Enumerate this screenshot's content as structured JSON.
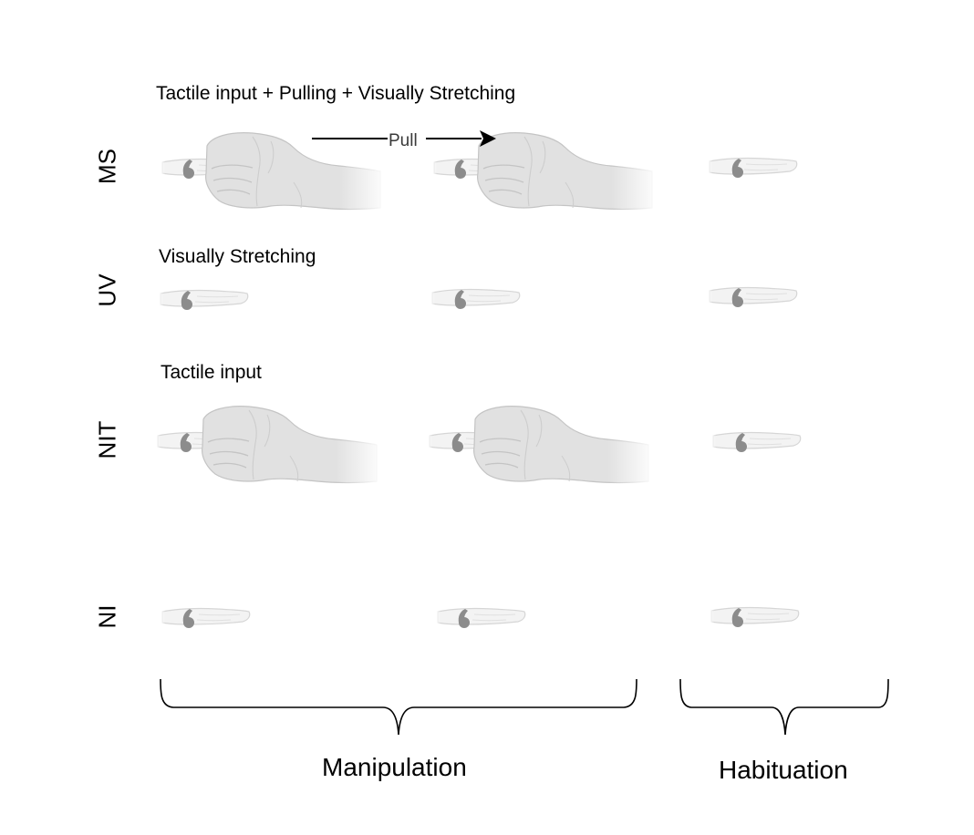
{
  "conditions": {
    "ms": {
      "label": "MS",
      "title": "Tactile input + Pulling + Visually Stretching"
    },
    "uv": {
      "label": "UV",
      "title": "Visually Stretching"
    },
    "nit": {
      "label": "NIT",
      "title": "Tactile input"
    },
    "ni": {
      "label": "NI"
    }
  },
  "pull_label": "Pull",
  "groups": {
    "manipulation": "Manipulation",
    "habituation": "Habituation"
  },
  "colors": {
    "finger_fill": "#f3f3f3",
    "finger_stroke": "#d6d6d6",
    "ring": "#8c8c8c",
    "hand_fill": "#e1e1e1",
    "hand_stroke": "#c4c4c4",
    "line": "#000000"
  }
}
